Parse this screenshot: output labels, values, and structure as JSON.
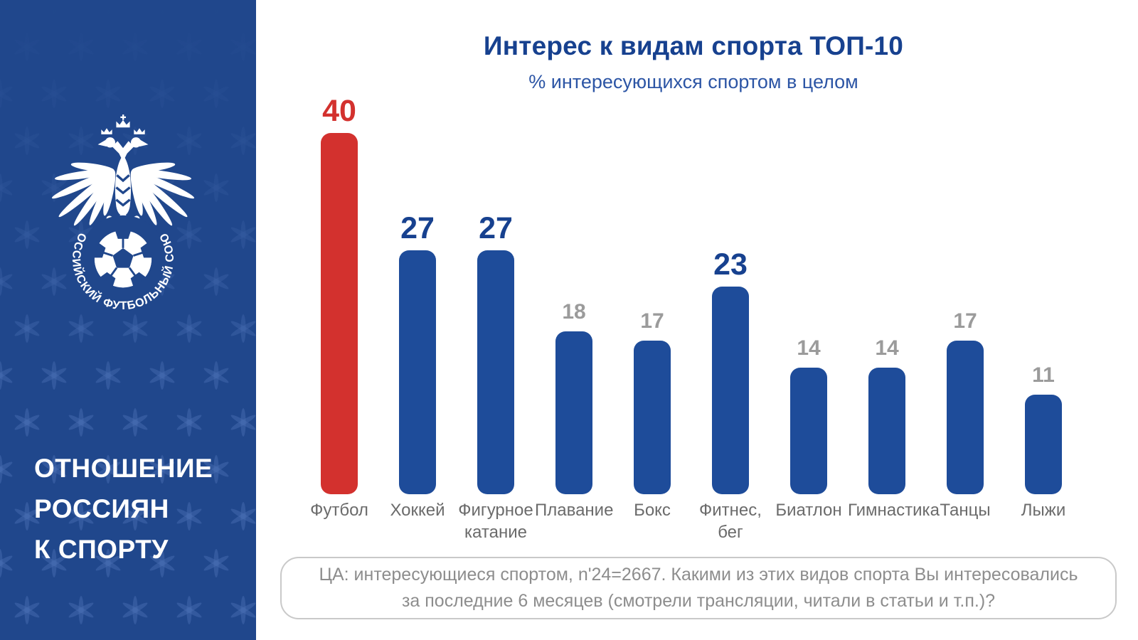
{
  "sidebar": {
    "bg_color": "#20478C",
    "logo_ring_text": "РОССИЙСКИЙ ФУТБОЛЬНЫЙ СОЮЗ",
    "title_line1": "ОТНОШЕНИЕ",
    "title_line2": "РОССИЯН",
    "title_line3": "К СПОРТУ"
  },
  "header": {
    "title": "Интерес к видам спорта ТОП-10",
    "subtitle": "% интересующихся спортом в целом"
  },
  "chart_data": {
    "type": "bar",
    "title": "Интерес к видам спорта ТОП-10",
    "subtitle": "% интересующихся спортом в целом",
    "categories": [
      "Футбол",
      "Хоккей",
      "Фигурное катание",
      "Плавание",
      "Бокс",
      "Фитнес, бег",
      "Биатлон",
      "Гимнастика",
      "Танцы",
      "Лыжи"
    ],
    "tick_labels": [
      "Футбол",
      "Хоккей",
      "Фигурное\nкатание",
      "Плавание",
      "Бокс",
      "Фитнес,\nбег",
      "Биатлон",
      "Гимнастика",
      "Танцы",
      "Лыжи"
    ],
    "values": [
      40,
      27,
      27,
      18,
      17,
      23,
      14,
      14,
      17,
      11
    ],
    "highlighted": [
      true,
      true,
      true,
      false,
      false,
      true,
      false,
      false,
      false,
      false
    ],
    "bar_colors": [
      "#D3312E",
      "#1E4C9A",
      "#1E4C9A",
      "#1E4C9A",
      "#1E4C9A",
      "#1E4C9A",
      "#1E4C9A",
      "#1E4C9A",
      "#1E4C9A",
      "#1E4C9A"
    ],
    "value_colors": [
      "#D3312E",
      "#17418F",
      "#17418F",
      "#9B9B9B",
      "#9B9B9B",
      "#17418F",
      "#9B9B9B",
      "#9B9B9B",
      "#9B9B9B",
      "#9B9B9B"
    ],
    "ylim": [
      0,
      40
    ],
    "grid": false,
    "legend": false,
    "value_labels_position": "above bars",
    "accent_red": "#D3312E",
    "accent_blue": "#1E4C9A"
  },
  "footer": {
    "line1": "ЦА: интересующиеся спортом, n'24=2667. Какими из этих видов спорта Вы интересовались",
    "line2": "за последние 6 месяцев (смотрели трансляции, читали в статьи и т.п.)?"
  }
}
